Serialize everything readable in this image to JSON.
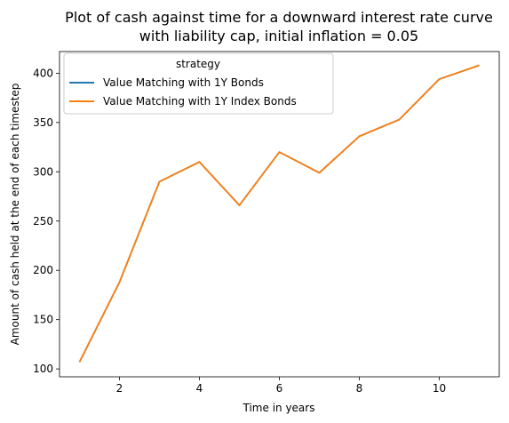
{
  "chart_data": {
    "type": "line",
    "title_line1": "Plot of cash against time for a downward interest rate curve",
    "title_line2": "with liability cap, initial inflation = 0.05",
    "xlabel": "Time in years",
    "ylabel": "Amount of cash held at the end of each timestep",
    "xlim": [
      0.5,
      11.5
    ],
    "ylim": [
      92,
      422
    ],
    "xticks": [
      2,
      4,
      6,
      8,
      10
    ],
    "yticks": [
      100,
      150,
      200,
      250,
      300,
      350,
      400
    ],
    "legend": {
      "title": "strategy",
      "placement": "upper-left"
    },
    "x": [
      1,
      2,
      3,
      4,
      5,
      6,
      7,
      8,
      9,
      10,
      11
    ],
    "series": [
      {
        "name": "Value Matching with 1Y Bonds",
        "color": "#1f77b4",
        "values": [
          107,
          188,
          290,
          310,
          266,
          320,
          299,
          336,
          353,
          394,
          408
        ]
      },
      {
        "name": "Value Matching with 1Y Index Bonds",
        "color": "#ff7f0e",
        "values": [
          107,
          188,
          290,
          310,
          266,
          320,
          299,
          336,
          353,
          394,
          408
        ]
      }
    ]
  }
}
